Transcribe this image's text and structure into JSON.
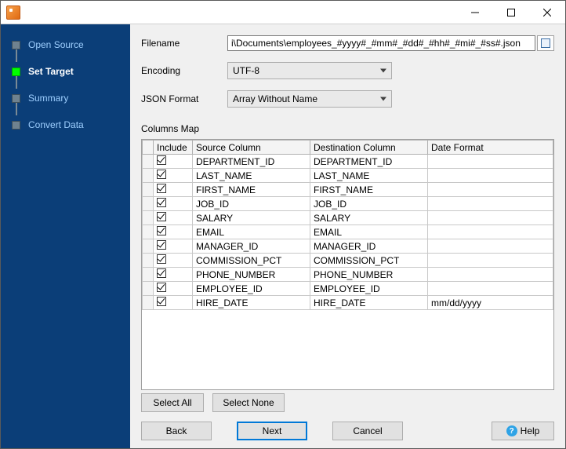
{
  "titlebar": {
    "title": ""
  },
  "sidebar": {
    "steps": [
      {
        "label": "Open Source",
        "active": false
      },
      {
        "label": "Set Target",
        "active": true
      },
      {
        "label": "Summary",
        "active": false
      },
      {
        "label": "Convert Data",
        "active": false
      }
    ]
  },
  "form": {
    "filename_label": "Filename",
    "filename_value": "i\\Documents\\employees_#yyyy#_#mm#_#dd#_#hh#_#mi#_#ss#.json",
    "encoding_label": "Encoding",
    "encoding_value": "UTF-8",
    "json_format_label": "JSON Format",
    "json_format_value": "Array Without Name"
  },
  "columns_map": {
    "section_label": "Columns Map",
    "headers": {
      "include": "Include",
      "source": "Source Column",
      "destination": "Destination Column",
      "date_format": "Date Format"
    },
    "rows": [
      {
        "include": true,
        "source": "DEPARTMENT_ID",
        "destination": "DEPARTMENT_ID",
        "date_format": ""
      },
      {
        "include": true,
        "source": "LAST_NAME",
        "destination": "LAST_NAME",
        "date_format": ""
      },
      {
        "include": true,
        "source": "FIRST_NAME",
        "destination": "FIRST_NAME",
        "date_format": ""
      },
      {
        "include": true,
        "source": "JOB_ID",
        "destination": "JOB_ID",
        "date_format": ""
      },
      {
        "include": true,
        "source": "SALARY",
        "destination": "SALARY",
        "date_format": ""
      },
      {
        "include": true,
        "source": "EMAIL",
        "destination": "EMAIL",
        "date_format": ""
      },
      {
        "include": true,
        "source": "MANAGER_ID",
        "destination": "MANAGER_ID",
        "date_format": ""
      },
      {
        "include": true,
        "source": "COMMISSION_PCT",
        "destination": "COMMISSION_PCT",
        "date_format": ""
      },
      {
        "include": true,
        "source": "PHONE_NUMBER",
        "destination": "PHONE_NUMBER",
        "date_format": ""
      },
      {
        "include": true,
        "source": "EMPLOYEE_ID",
        "destination": "EMPLOYEE_ID",
        "date_format": ""
      },
      {
        "include": true,
        "source": "HIRE_DATE",
        "destination": "HIRE_DATE",
        "date_format": "mm/dd/yyyy"
      }
    ],
    "col_widths": {
      "rowhdr": 14,
      "include": 50,
      "source": 150,
      "destination": 150,
      "date_format": 145
    }
  },
  "buttons": {
    "select_all": "Select All",
    "select_none": "Select None",
    "back": "Back",
    "next": "Next",
    "cancel": "Cancel",
    "help": "Help"
  },
  "colors": {
    "sidebar_bg": "#0b3e78",
    "link_color": "#9ecfff",
    "active_step": "#00ff00",
    "primary_border": "#0078d7",
    "panel_bg": "#f0f0f0"
  }
}
